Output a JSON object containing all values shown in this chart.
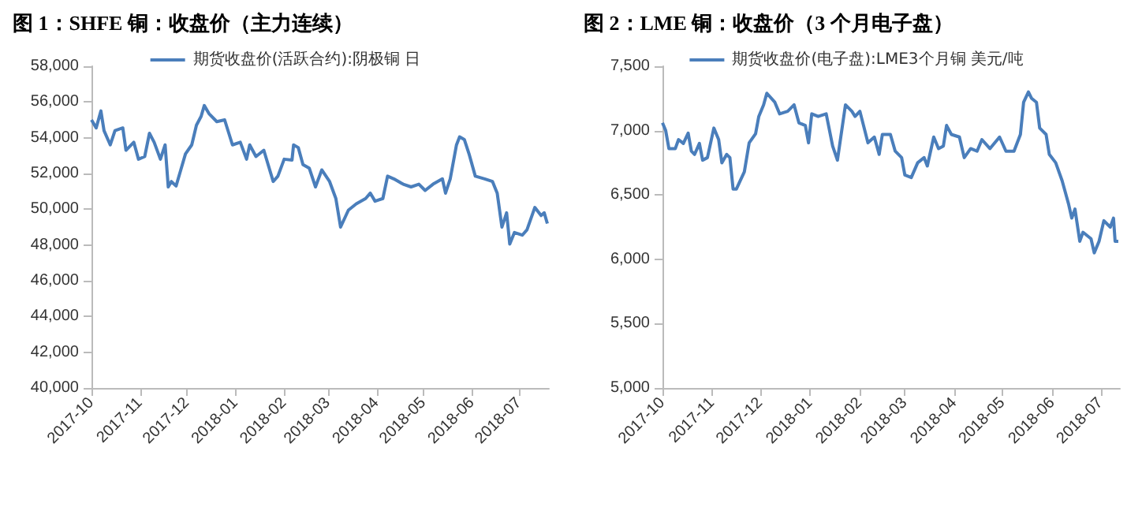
{
  "chart_data": [
    {
      "type": "line",
      "title": "图 1：SHFE 铜：收盘价（主力连续）",
      "legend": "top",
      "x": [
        "2017-10-01",
        "2017-10-04",
        "2017-10-07",
        "2017-10-09",
        "2017-10-13",
        "2017-10-16",
        "2017-10-21",
        "2017-10-23",
        "2017-10-28",
        "2017-10-31",
        "2017-11-04",
        "2017-11-07",
        "2017-11-10",
        "2017-11-14",
        "2017-11-17",
        "2017-11-19",
        "2017-11-21",
        "2017-11-24",
        "2017-11-27",
        "2017-11-30",
        "2017-12-04",
        "2017-12-07",
        "2017-12-10",
        "2017-12-12",
        "2017-12-15",
        "2017-12-20",
        "2017-12-25",
        "2017-12-30",
        "2018-01-04",
        "2018-01-08",
        "2018-01-10",
        "2018-01-14",
        "2018-01-19",
        "2018-01-25",
        "2018-01-28",
        "2018-02-01",
        "2018-02-06",
        "2018-02-07",
        "2018-02-10",
        "2018-02-13",
        "2018-02-17",
        "2018-02-21",
        "2018-02-25",
        "2018-03-02",
        "2018-03-06",
        "2018-03-09",
        "2018-03-14",
        "2018-03-19",
        "2018-03-25",
        "2018-03-28",
        "2018-03-31",
        "2018-04-05",
        "2018-04-08",
        "2018-04-12",
        "2018-04-18",
        "2018-04-23",
        "2018-04-28",
        "2018-05-02",
        "2018-05-07",
        "2018-05-13",
        "2018-05-15",
        "2018-05-18",
        "2018-05-22",
        "2018-05-24",
        "2018-05-27",
        "2018-05-30",
        "2018-06-03",
        "2018-06-09",
        "2018-06-14",
        "2018-06-17",
        "2018-06-20",
        "2018-06-23",
        "2018-06-25",
        "2018-06-28",
        "2018-07-03",
        "2018-07-06",
        "2018-07-11",
        "2018-07-15",
        "2018-07-17",
        "2018-07-19"
      ],
      "series": [
        {
          "name": "期货收盘价(活跃合约):阴极铜 日",
          "color": "#4a7ebb",
          "values": [
            55000,
            54550,
            55500,
            54400,
            53600,
            54400,
            54550,
            53300,
            53750,
            52800,
            52950,
            54250,
            53750,
            52800,
            53600,
            51250,
            51550,
            51300,
            52200,
            53100,
            53600,
            54700,
            55200,
            55800,
            55350,
            54900,
            55000,
            53600,
            53750,
            52800,
            53600,
            52950,
            53300,
            51550,
            51850,
            52800,
            52750,
            53600,
            53450,
            52500,
            52300,
            51250,
            52200,
            51550,
            50600,
            49000,
            49950,
            50300,
            50600,
            50900,
            50450,
            50600,
            51850,
            51700,
            51400,
            51250,
            51400,
            51050,
            51400,
            51700,
            50900,
            51700,
            53600,
            54050,
            53900,
            53100,
            51850,
            51700,
            51550,
            50900,
            49000,
            49800,
            48050,
            48700,
            48550,
            48850,
            50100,
            49650,
            49800,
            49200
          ]
        }
      ],
      "xlim": [
        "2017-10-01",
        "2018-07-20"
      ],
      "xticks": [
        {
          "value": "2017-10-01",
          "label": "2017-10"
        },
        {
          "value": "2017-11-01",
          "label": "2017-11"
        },
        {
          "value": "2017-12-01",
          "label": "2017-12"
        },
        {
          "value": "2018-01-01",
          "label": "2018-01"
        },
        {
          "value": "2018-02-01",
          "label": "2018-02"
        },
        {
          "value": "2018-03-01",
          "label": "2018-03"
        },
        {
          "value": "2018-04-01",
          "label": "2018-04"
        },
        {
          "value": "2018-05-01",
          "label": "2018-05"
        },
        {
          "value": "2018-06-01",
          "label": "2018-06"
        },
        {
          "value": "2018-07-01",
          "label": "2018-07"
        }
      ],
      "ylim": [
        40000,
        58000
      ],
      "yticks": [
        {
          "value": 40000,
          "label": "40,000"
        },
        {
          "value": 42000,
          "label": "42,000"
        },
        {
          "value": 44000,
          "label": "44,000"
        },
        {
          "value": 46000,
          "label": "46,000"
        },
        {
          "value": 48000,
          "label": "48,000"
        },
        {
          "value": 50000,
          "label": "50,000"
        },
        {
          "value": 52000,
          "label": "52,000"
        },
        {
          "value": 54000,
          "label": "54,000"
        },
        {
          "value": 56000,
          "label": "56,000"
        },
        {
          "value": 58000,
          "label": "58,000"
        }
      ]
    },
    {
      "type": "line",
      "title": "图 2：LME 铜：收盘价（3 个月电子盘）",
      "legend": "top",
      "x": [
        "2017-10-01",
        "2017-10-03",
        "2017-10-05",
        "2017-10-09",
        "2017-10-11",
        "2017-10-14",
        "2017-10-17",
        "2017-10-19",
        "2017-10-21",
        "2017-10-24",
        "2017-10-26",
        "2017-10-29",
        "2017-11-02",
        "2017-11-05",
        "2017-11-07",
        "2017-11-10",
        "2017-11-12",
        "2017-11-14",
        "2017-11-16",
        "2017-11-21",
        "2017-11-24",
        "2017-11-28",
        "2017-11-30",
        "2017-12-03",
        "2017-12-05",
        "2017-12-10",
        "2017-12-13",
        "2017-12-18",
        "2017-12-22",
        "2017-12-25",
        "2017-12-29",
        "2017-12-31",
        "2018-01-02",
        "2018-01-06",
        "2018-01-11",
        "2018-01-15",
        "2018-01-18",
        "2018-01-23",
        "2018-01-27",
        "2018-01-29",
        "2018-02-01",
        "2018-02-06",
        "2018-02-10",
        "2018-02-13",
        "2018-02-15",
        "2018-02-20",
        "2018-02-23",
        "2018-02-27",
        "2018-03-01",
        "2018-03-05",
        "2018-03-09",
        "2018-03-13",
        "2018-03-15",
        "2018-03-19",
        "2018-03-22",
        "2018-03-25",
        "2018-03-27",
        "2018-03-30",
        "2018-04-04",
        "2018-04-07",
        "2018-04-11",
        "2018-04-15",
        "2018-04-18",
        "2018-04-23",
        "2018-04-29",
        "2018-05-03",
        "2018-05-08",
        "2018-05-12",
        "2018-05-14",
        "2018-05-17",
        "2018-05-19",
        "2018-05-22",
        "2018-05-24",
        "2018-05-28",
        "2018-05-30",
        "2018-06-03",
        "2018-06-07",
        "2018-06-11",
        "2018-06-13",
        "2018-06-15",
        "2018-06-18",
        "2018-06-20",
        "2018-06-25",
        "2018-06-27",
        "2018-06-30",
        "2018-07-03",
        "2018-07-07",
        "2018-07-09",
        "2018-07-10",
        "2018-07-12"
      ],
      "series": [
        {
          "name": "期货收盘价(电子盘):LME3个月铜 美元/吨",
          "color": "#4a7ebb",
          "values": [
            7060,
            7000,
            6860,
            6860,
            6930,
            6900,
            6980,
            6840,
            6815,
            6900,
            6770,
            6790,
            7020,
            6930,
            6750,
            6815,
            6790,
            6545,
            6545,
            6680,
            6905,
            6975,
            7110,
            7200,
            7290,
            7220,
            7130,
            7150,
            7200,
            7060,
            7040,
            6905,
            7130,
            7110,
            7130,
            6880,
            6770,
            7200,
            7150,
            7110,
            7150,
            6905,
            6950,
            6815,
            6970,
            6970,
            6840,
            6790,
            6655,
            6635,
            6750,
            6790,
            6725,
            6950,
            6860,
            6880,
            7040,
            6970,
            6950,
            6790,
            6860,
            6840,
            6930,
            6860,
            6950,
            6840,
            6840,
            6970,
            7220,
            7300,
            7250,
            7220,
            7020,
            6970,
            6815,
            6750,
            6610,
            6430,
            6320,
            6390,
            6140,
            6210,
            6160,
            6050,
            6140,
            6300,
            6250,
            6320,
            6140,
            6140
          ]
        }
      ],
      "xlim": [
        "2017-10-01",
        "2018-07-13"
      ],
      "xticks": [
        {
          "value": "2017-10-01",
          "label": "2017-10"
        },
        {
          "value": "2017-11-01",
          "label": "2017-11"
        },
        {
          "value": "2017-12-01",
          "label": "2017-12"
        },
        {
          "value": "2018-01-01",
          "label": "2018-01"
        },
        {
          "value": "2018-02-01",
          "label": "2018-02"
        },
        {
          "value": "2018-03-01",
          "label": "2018-03"
        },
        {
          "value": "2018-04-01",
          "label": "2018-04"
        },
        {
          "value": "2018-05-01",
          "label": "2018-05"
        },
        {
          "value": "2018-06-01",
          "label": "2018-06"
        },
        {
          "value": "2018-07-01",
          "label": "2018-07"
        }
      ],
      "ylim": [
        5000,
        7500
      ],
      "yticks": [
        {
          "value": 5000,
          "label": "5,000"
        },
        {
          "value": 5500,
          "label": "5,500"
        },
        {
          "value": 6000,
          "label": "6,000"
        },
        {
          "value": 6500,
          "label": "6,500"
        },
        {
          "value": 7000,
          "label": "7,000"
        },
        {
          "value": 7500,
          "label": "7,500"
        }
      ]
    }
  ]
}
